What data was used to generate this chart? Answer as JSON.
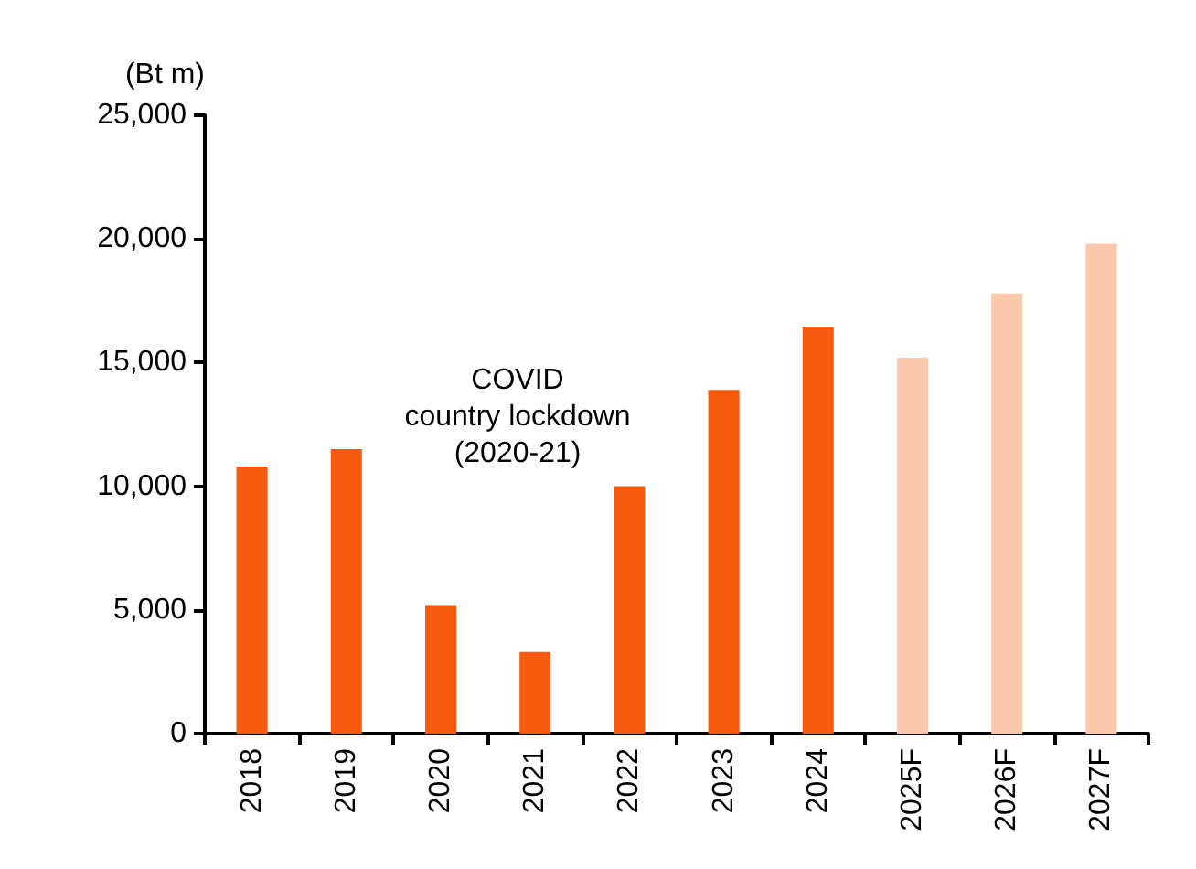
{
  "chart_data": {
    "type": "bar",
    "ylabel": "(Bt m)",
    "categories": [
      "2018",
      "2019",
      "2020",
      "2021",
      "2022",
      "2023",
      "2024",
      "2025F",
      "2026F",
      "2027F"
    ],
    "values": [
      10800,
      11500,
      5200,
      3300,
      10000,
      13900,
      16450,
      15200,
      17800,
      19800
    ],
    "colors": [
      "#f55a0e",
      "#f55a0e",
      "#f55a0e",
      "#f55a0e",
      "#f55a0e",
      "#f55a0e",
      "#f55a0e",
      "#fbc8ae",
      "#fbc8ae",
      "#fbc8ae"
    ],
    "ylim": [
      0,
      25000
    ],
    "yticks": [
      0,
      {
        "value": 5000,
        "label": "5,000"
      },
      {
        "value": 10000,
        "label": "10,000"
      },
      {
        "value": 15000,
        "label": "15,000"
      },
      {
        "value": 20000,
        "label": "20,000"
      },
      {
        "value": 25000,
        "label": "25,000"
      }
    ],
    "annotations": [
      "COVID\ncountry lockdown\n(2020-21)"
    ]
  }
}
